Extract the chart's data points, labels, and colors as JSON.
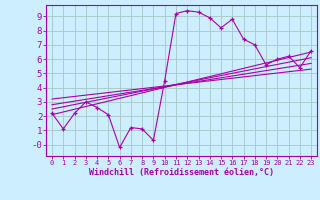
{
  "background_color": "#cceeff",
  "grid_color": "#aacccc",
  "line_color": "#aa00aa",
  "main_series_x": [
    0,
    1,
    2,
    3,
    4,
    5,
    6,
    7,
    8,
    9,
    10,
    11,
    12,
    13,
    14,
    15,
    16,
    17,
    18,
    19,
    20,
    21,
    22,
    23
  ],
  "main_series_y": [
    2.2,
    1.1,
    2.2,
    3.0,
    2.6,
    2.1,
    -0.2,
    1.2,
    1.1,
    0.3,
    4.5,
    9.2,
    9.4,
    9.3,
    8.9,
    8.2,
    8.8,
    7.4,
    7.0,
    5.6,
    6.0,
    6.2,
    5.4,
    6.6
  ],
  "reg_line1_x": [
    0,
    23
  ],
  "reg_line1_y": [
    2.1,
    6.5
  ],
  "reg_line2_x": [
    0,
    23
  ],
  "reg_line2_y": [
    2.5,
    6.1
  ],
  "reg_line3_x": [
    0,
    23
  ],
  "reg_line3_y": [
    2.8,
    5.7
  ],
  "reg_line4_x": [
    0,
    23
  ],
  "reg_line4_y": [
    3.2,
    5.3
  ],
  "xlim": [
    -0.5,
    23.5
  ],
  "ylim": [
    -0.8,
    9.8
  ],
  "xticks": [
    0,
    1,
    2,
    3,
    4,
    5,
    6,
    7,
    8,
    9,
    10,
    11,
    12,
    13,
    14,
    15,
    16,
    17,
    18,
    19,
    20,
    21,
    22,
    23
  ],
  "yticks": [
    0,
    1,
    2,
    3,
    4,
    5,
    6,
    7,
    8,
    9
  ],
  "xlabel": "Windchill (Refroidissement éolien,°C)",
  "title": ""
}
